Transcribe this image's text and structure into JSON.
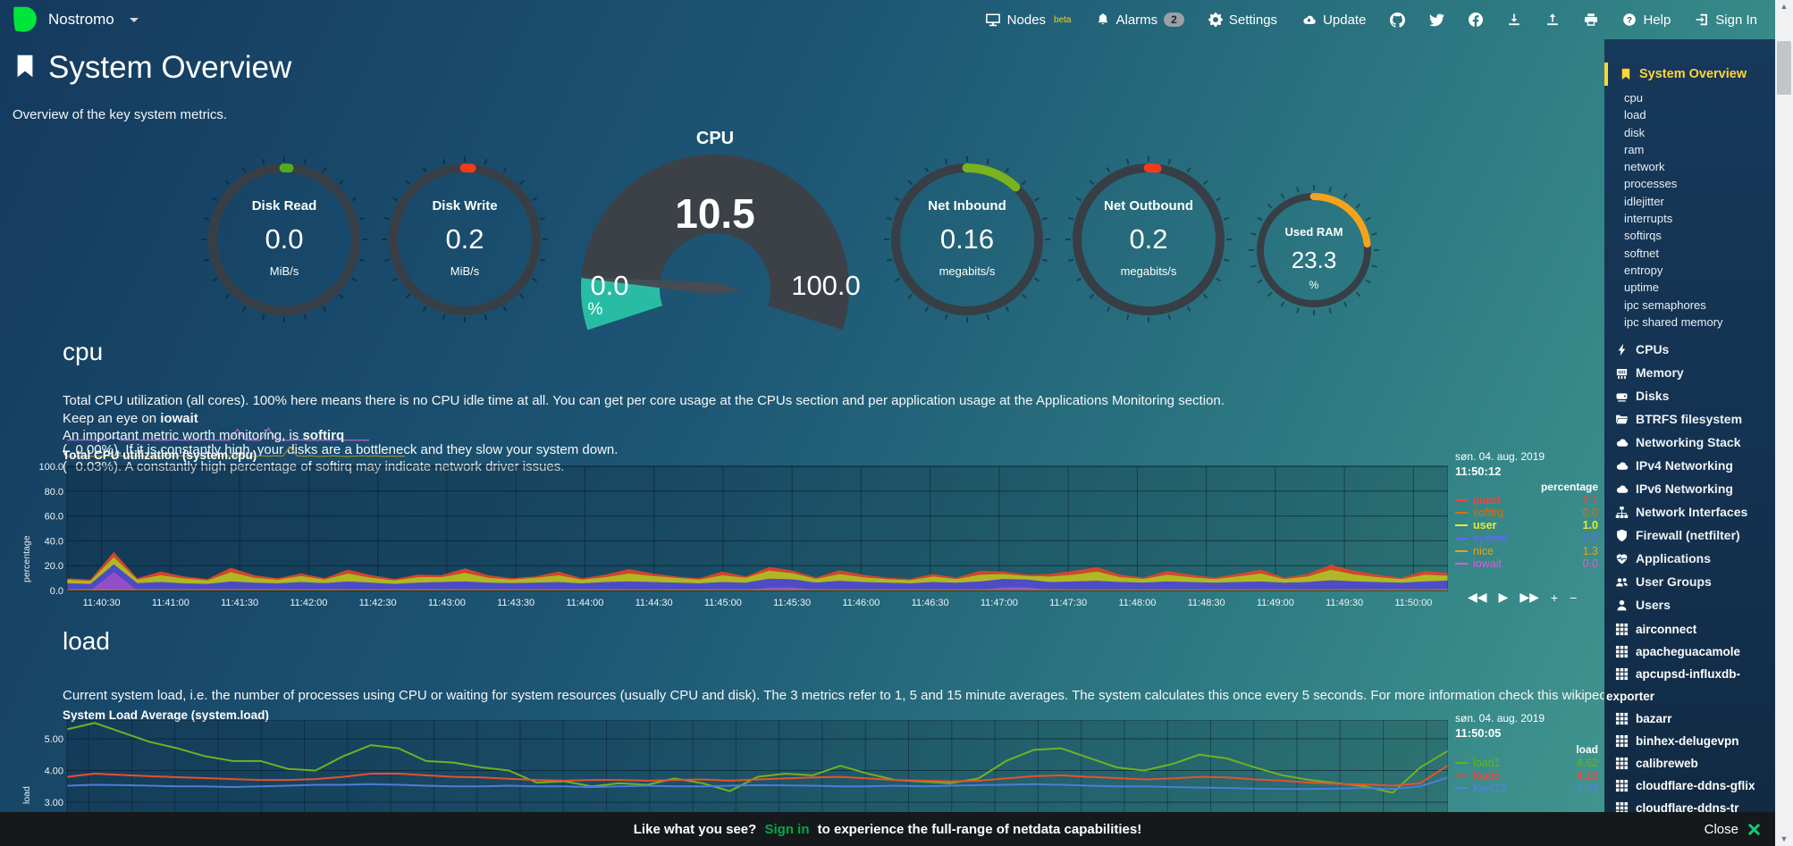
{
  "nav": {
    "hostname": "Nostromo",
    "nodes_label": "Nodes",
    "nodes_beta": "beta",
    "alarms_label": "Alarms",
    "alarms_count": "2",
    "settings_label": "Settings",
    "update_label": "Update",
    "help_label": "Help",
    "signin_label": "Sign In"
  },
  "header": {
    "title": "System Overview",
    "subtitle": "Overview of the key system metrics."
  },
  "gauges": {
    "disk_read": {
      "title": "Disk Read",
      "value": "0.0",
      "units": "MiB/s",
      "percent": 1.2,
      "color": "#4fae1f"
    },
    "disk_write": {
      "title": "Disk Write",
      "value": "0.2",
      "units": "MiB/s",
      "percent": 1.6,
      "color": "#f03c1e"
    },
    "cpu": {
      "title": "CPU",
      "value": "10.5",
      "min": "0.0",
      "max": "100.0",
      "units": "%",
      "percent": 10.5,
      "fill_color": "#29bca4"
    },
    "net_inbound": {
      "title": "Net Inbound",
      "value": "0.16",
      "units": "megabits/s",
      "percent": 12,
      "color": "#79b41e"
    },
    "net_outbound": {
      "title": "Net Outbound",
      "value": "0.2",
      "units": "megabits/s",
      "percent": 2,
      "color": "#f03c1e"
    },
    "used_ram": {
      "title": "Used RAM",
      "value": "23.3",
      "units": "%",
      "percent": 23.3,
      "color": "#f5a31c"
    }
  },
  "cpu_section": {
    "heading": "cpu",
    "line1": "Total CPU utilization (all cores). 100% here means there is no CPU idle time at all. You can get per core usage at the CPUs section and per application usage at the Applications Monitoring section.",
    "line2_prefix": "Keep an eye on ",
    "line2_bold": "iowait",
    "iowait_pct": "0.00%",
    "line2_suffix": " If it is constantly high, your disks are a bottleneck and they slow your system down.",
    "line3_prefix": "An important metric worth monitoring, is ",
    "line3_bold": "softirq",
    "softirq_pct": "0.03%",
    "line3_suffix": " A constantly high percentage of softirq may indicate network driver issues.",
    "paren_open": "(",
    "paren_close": ").",
    "chart_title": "Total CPU utilization (system.cpu)",
    "legend_date": "søn. 04. aug. 2019",
    "legend_time": "11:50:12",
    "legend_units": "percentage",
    "series": [
      {
        "name": "guest",
        "value": "2.1",
        "color": "#ff4136"
      },
      {
        "name": "softirq",
        "value": "0.0",
        "color": "#d9700a"
      },
      {
        "name": "user",
        "value": "1.0",
        "color": "#e7ea30",
        "bold": true
      },
      {
        "name": "system",
        "value": "6.2",
        "color": "#6666ff"
      },
      {
        "name": "nice",
        "value": "1.3",
        "color": "#e3a21e"
      },
      {
        "name": "iowait",
        "value": "0.0",
        "color": "#d45fd4"
      }
    ],
    "toolbar": [
      {
        "name": "pan-backward",
        "glyph": "◀◀"
      },
      {
        "name": "play",
        "glyph": "▶"
      },
      {
        "name": "pan-forward",
        "glyph": "▶▶"
      },
      {
        "name": "zoom-in",
        "glyph": "+"
      },
      {
        "name": "zoom-out",
        "glyph": "−"
      },
      {
        "name": "resize",
        "glyph": "⇕"
      }
    ]
  },
  "load_section": {
    "heading": "load",
    "line1": "Current system load, i.e. the number of processes using CPU or waiting for system resources (usually CPU and disk). The 3 metrics refer to 1, 5 and 15 minute averages. The system calculates this once every 5 seconds. For more information check this wikipedia article",
    "chart_title": "System Load Average (system.load)",
    "legend_date": "søn. 04. aug. 2019",
    "legend_time": "11:50:05",
    "legend_units": "load",
    "series": [
      {
        "name": "load1",
        "value": "4.62",
        "color": "#63b31e"
      },
      {
        "name": "load5",
        "value": "4.16",
        "color": "#ff4136"
      },
      {
        "name": "load15",
        "value": "3.78",
        "color": "#5a7fe8"
      }
    ]
  },
  "sidebar": {
    "active_label": "System Overview",
    "subitems": [
      "cpu",
      "load",
      "disk",
      "ram",
      "network",
      "processes",
      "idlejitter",
      "interrupts",
      "softirqs",
      "softnet",
      "entropy",
      "uptime",
      "ipc semaphores",
      "ipc shared memory"
    ],
    "sections": [
      {
        "label": "CPUs",
        "icon": "bolt-icon"
      },
      {
        "label": "Memory",
        "icon": "memory-icon"
      },
      {
        "label": "Disks",
        "icon": "disks-icon"
      },
      {
        "label": "BTRFS filesystem",
        "icon": "folder-icon"
      },
      {
        "label": "Networking Stack",
        "icon": "cloud-icon"
      },
      {
        "label": "IPv4 Networking",
        "icon": "cloud-icon"
      },
      {
        "label": "IPv6 Networking",
        "icon": "cloud-icon"
      },
      {
        "label": "Network Interfaces",
        "icon": "sitemap-icon"
      },
      {
        "label": "Firewall (netfilter)",
        "icon": "shield-icon"
      },
      {
        "label": "Applications",
        "icon": "heartbeat-icon"
      },
      {
        "label": "User Groups",
        "icon": "users-icon"
      },
      {
        "label": "Users",
        "icon": "user-icon"
      }
    ],
    "hosts": [
      "airconnect",
      "apacheguacamole",
      "apcupsd-influxdb-exporter",
      "bazarr",
      "binhex-delugevpn",
      "calibreweb",
      "cloudflare-ddns-gflix",
      "cloudflare-ddns-tr"
    ]
  },
  "bottom_bar": {
    "prefix": "Like what you see?",
    "signin": "Sign in",
    "suffix": "to experience the full-range of netdata capabilities!",
    "close_label": "Close"
  },
  "chart_data": [
    {
      "id": "system.cpu",
      "type": "area",
      "stacked": true,
      "title": "Total CPU utilization (system.cpu)",
      "ylabel": "percentage",
      "ylim": [
        0,
        100
      ],
      "yticks": [
        "0.0",
        "20.0",
        "40.0",
        "60.0",
        "80.0",
        "100.0"
      ],
      "xticks": [
        "11:40:30",
        "11:41:00",
        "11:41:30",
        "11:42:00",
        "11:42:30",
        "11:43:00",
        "11:43:30",
        "11:44:00",
        "11:44:30",
        "11:45:00",
        "11:45:30",
        "11:46:00",
        "11:46:30",
        "11:47:00",
        "11:47:30",
        "11:48:00",
        "11:48:30",
        "11:49:00",
        "11:49:30",
        "11:50:00"
      ],
      "stack": [
        {
          "name": "nice",
          "color": "#9a4fd0",
          "values": [
            0.3,
            0.3,
            15,
            0.4,
            0.3,
            0.3,
            0.3,
            0.3,
            0.3,
            0.3,
            0.3,
            0.4,
            0.3,
            0.3,
            0.3,
            0.3,
            0.3,
            0.3,
            0.3,
            0.4,
            0.3,
            0.3,
            0.3,
            0.8,
            0.3,
            0.3,
            0.3,
            0.3,
            0.3,
            0.3,
            2.5,
            2.5,
            0.4,
            0.3,
            0.3,
            0.3,
            0.3,
            0.3,
            0.3,
            0.3,
            2.8,
            2.8,
            0.3,
            0.3,
            0.3,
            0.3,
            0.4,
            0.3,
            0.3,
            0.3,
            0.3,
            0.3,
            0.3,
            0.3,
            0.3,
            0.4,
            0.3,
            0.3,
            0.3,
            1.5
          ]
        },
        {
          "name": "system",
          "color": "#4f4ccc",
          "values": [
            5.5,
            5,
            6,
            5.5,
            6.5,
            5.5,
            5,
            7,
            6,
            5.5,
            6.5,
            5.5,
            7,
            6,
            5,
            6,
            6.5,
            7,
            6,
            5.5,
            6,
            6.5,
            5.5,
            6,
            7,
            6.5,
            6,
            5.5,
            6.5,
            6,
            7,
            6.5,
            6,
            7.5,
            6.5,
            6,
            5.5,
            6.5,
            6,
            7,
            6.5,
            6,
            6.5,
            7,
            7.5,
            6.5,
            6,
            7,
            6.5,
            6,
            6.5,
            7,
            6,
            6.5,
            8,
            7,
            6.5,
            6,
            7,
            6.5
          ]
        },
        {
          "name": "user",
          "color": "#b9bd21",
          "values": [
            3,
            2.5,
            6,
            3,
            5.5,
            4,
            3,
            7.5,
            4,
            3,
            5,
            3,
            6.5,
            4,
            3,
            4.5,
            4,
            7,
            4,
            3,
            4,
            5.5,
            3,
            4,
            6.5,
            5,
            4,
            3,
            5.5,
            4,
            6.5,
            5,
            3,
            5.5,
            4,
            3,
            2.5,
            4.5,
            3,
            5.5,
            4,
            3,
            4.5,
            5.5,
            7.5,
            4,
            3,
            5.5,
            4,
            3,
            4.5,
            6.5,
            3,
            4.5,
            8.5,
            5.5,
            4,
            3,
            5.5,
            4
          ]
        },
        {
          "name": "guest",
          "color": "#dd4627",
          "values": [
            1,
            1,
            4,
            1,
            3,
            1.5,
            1,
            3.5,
            2,
            1,
            2,
            1,
            3,
            2,
            1,
            2,
            1.5,
            3.5,
            2,
            1,
            1,
            3,
            1,
            2,
            3.5,
            2,
            1,
            1,
            3,
            1,
            3,
            2,
            1,
            3,
            2,
            1,
            1,
            2,
            1,
            3,
            2,
            1,
            2,
            3,
            3.5,
            2,
            1,
            3,
            2,
            1,
            2,
            3,
            1,
            2,
            4,
            3,
            2,
            1,
            3,
            2
          ]
        }
      ],
      "baseline": {
        "name": "softirq",
        "color": "#df8d12",
        "value": 0.5
      }
    },
    {
      "id": "system.load",
      "type": "line",
      "title": "System Load Average (system.load)",
      "ylabel": "load",
      "yticks": [
        {
          "label": "5.00",
          "v": 5
        },
        {
          "label": "4.00",
          "v": 4
        },
        {
          "label": "3.00",
          "v": 3
        }
      ],
      "series": [
        {
          "name": "load1",
          "color": "#6fb321",
          "values": [
            5.3,
            5.5,
            5.2,
            4.9,
            4.7,
            4.45,
            4.3,
            4.3,
            4.05,
            4.0,
            4.45,
            4.8,
            4.7,
            4.3,
            4.25,
            4.1,
            4.0,
            3.62,
            3.66,
            3.5,
            3.6,
            3.55,
            3.75,
            3.6,
            3.35,
            3.8,
            3.9,
            3.85,
            4.15,
            3.9,
            3.7,
            3.65,
            3.6,
            3.75,
            4.3,
            4.65,
            4.7,
            4.4,
            4.1,
            4.0,
            4.2,
            4.5,
            4.38,
            4.1,
            3.85,
            3.7,
            3.6,
            3.5,
            3.3,
            4.1,
            4.62
          ]
        },
        {
          "name": "load5",
          "color": "#e8502e",
          "values": [
            3.8,
            3.9,
            3.86,
            3.82,
            3.79,
            3.76,
            3.73,
            3.7,
            3.7,
            3.73,
            3.8,
            3.9,
            3.9,
            3.85,
            3.8,
            3.78,
            3.74,
            3.7,
            3.68,
            3.7,
            3.7,
            3.68,
            3.7,
            3.72,
            3.68,
            3.72,
            3.75,
            3.78,
            3.8,
            3.75,
            3.7,
            3.68,
            3.66,
            3.68,
            3.75,
            3.82,
            3.85,
            3.8,
            3.76,
            3.72,
            3.75,
            3.8,
            3.78,
            3.72,
            3.68,
            3.62,
            3.58,
            3.56,
            3.52,
            3.6,
            4.16
          ]
        },
        {
          "name": "load15",
          "color": "#4d7cd9",
          "values": [
            3.52,
            3.55,
            3.54,
            3.52,
            3.5,
            3.5,
            3.48,
            3.5,
            3.52,
            3.55,
            3.55,
            3.57,
            3.55,
            3.52,
            3.5,
            3.5,
            3.52,
            3.5,
            3.5,
            3.48,
            3.5,
            3.52,
            3.5,
            3.5,
            3.52,
            3.54,
            3.53,
            3.52,
            3.5,
            3.5,
            3.52,
            3.5,
            3.52,
            3.54,
            3.55,
            3.57,
            3.55,
            3.52,
            3.5,
            3.5,
            3.48,
            3.46,
            3.45,
            3.43,
            3.42,
            3.42,
            3.43,
            3.45,
            3.42,
            3.5,
            3.78
          ]
        }
      ]
    },
    {
      "id": "iowait_spark",
      "type": "line",
      "color": "#b06ad0",
      "max": 4,
      "values": [
        0.2,
        0.2,
        0.3,
        0.2,
        0.2,
        0.2,
        1.2,
        0.2,
        0.2,
        0.3,
        0.2,
        0.2,
        0.2,
        0.2,
        0.3,
        0.2,
        0.2,
        0.2,
        0.3,
        0.2,
        0.2,
        0.2,
        3.5,
        0.3,
        0.2,
        0.2,
        3.8,
        0.3,
        0.2,
        0.2,
        0.3,
        0.2,
        0.2,
        0.2,
        0.2,
        0.3,
        0.2,
        0.2,
        0.2,
        0.2
      ]
    },
    {
      "id": "softirq_spark",
      "type": "line",
      "color": "#9a8a30",
      "max": 4,
      "values": [
        0.5,
        0.4,
        0.6,
        0.5,
        0.4,
        0.6,
        0.5,
        0.7,
        0.5,
        0.4,
        0.6,
        0.5,
        0.4,
        0.5,
        0.7,
        0.5,
        0.6,
        0.4,
        0.5,
        0.6,
        0.5,
        0.4,
        0.6,
        0.5,
        0.7,
        0.5,
        0.4,
        0.6,
        0.5,
        0.6,
        0.5,
        3.2,
        0.6,
        0.5,
        0.6,
        0.4,
        0.5,
        0.6,
        0.5,
        0.4,
        0.5,
        0.6,
        0.5,
        0.6,
        0.4,
        0.5,
        0.5,
        0.5
      ]
    }
  ]
}
